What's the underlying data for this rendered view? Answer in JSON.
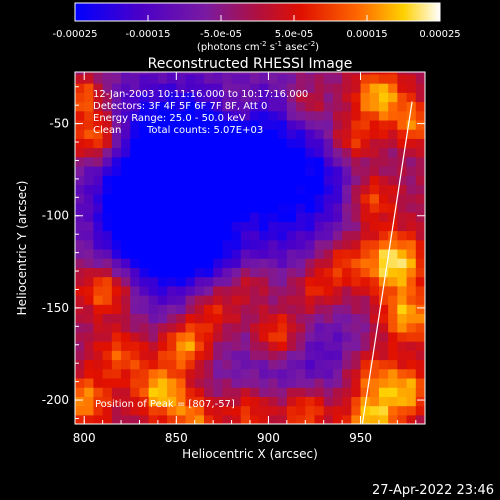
{
  "chart_data": {
    "type": "heatmap",
    "title": "Reconstructed RHESSI Image",
    "xlabel": "Heliocentric X (arcsec)",
    "ylabel": "Heliocentric Y (arcsec)",
    "xlim": [
      795,
      985
    ],
    "ylim": [
      -213,
      -22
    ],
    "x_ticks": [
      "800",
      "850",
      "900",
      "950"
    ],
    "y_ticks": [
      "-50",
      "-100",
      "-150",
      "-200"
    ],
    "colorbar": {
      "range": [
        -0.00025,
        0.00025
      ],
      "tick_labels": [
        "-0.00025",
        "-0.00015",
        "-5.0e-05",
        "5.0e-05",
        "0.00015",
        "0.00025"
      ],
      "label_main": "(photons cm",
      "label_sup1": "-2",
      "label_mid1": " s",
      "label_sup2": "-1",
      "label_mid2": " asec",
      "label_sup3": "-2",
      "label_end": ")",
      "colors": [
        "#0000ff",
        "#4b00c8",
        "#7a1aa0",
        "#b01040",
        "#e01000",
        "#ff6a00",
        "#ffd000",
        "#ffffff"
      ]
    },
    "annotations": {
      "time_range": "12-Jan-2003 10:11:16.000 to 10:17:16.000",
      "detectors": "Detectors: 3F 4F 5F 6F 7F 8F, Att 0",
      "energy": "Energy Range: 25.0 - 50.0 keV",
      "method": "Clean",
      "counts": "Total counts: 5.07E+03",
      "peak": "Position of Peak = [807,-57]"
    },
    "limb_line": {
      "x": [
        951,
        978
      ],
      "y": [
        -213,
        -38
      ]
    },
    "blobs": [
      {
        "x": 840,
        "y": -60,
        "v": -0.0002,
        "r": 28
      },
      {
        "x": 870,
        "y": -85,
        "v": -0.00022,
        "r": 30
      },
      {
        "x": 850,
        "y": -120,
        "v": -0.00018,
        "r": 25
      },
      {
        "x": 900,
        "y": -55,
        "v": -0.00012,
        "r": 22
      },
      {
        "x": 830,
        "y": -100,
        "v": -0.00015,
        "r": 20
      },
      {
        "x": 920,
        "y": -100,
        "v": -0.0001,
        "r": 22
      },
      {
        "x": 935,
        "y": -75,
        "v": -0.00012,
        "r": 18
      },
      {
        "x": 900,
        "y": -185,
        "v": -0.0001,
        "r": 22
      },
      {
        "x": 935,
        "y": -175,
        "v": -9e-05,
        "r": 18
      },
      {
        "x": 807,
        "y": -57,
        "v": 0.00025,
        "r": 10
      },
      {
        "x": 800,
        "y": -35,
        "v": 0.00018,
        "r": 8
      },
      {
        "x": 812,
        "y": -140,
        "v": 0.0002,
        "r": 10
      },
      {
        "x": 800,
        "y": -200,
        "v": 0.00018,
        "r": 10
      },
      {
        "x": 820,
        "y": -175,
        "v": 0.00014,
        "r": 10
      },
      {
        "x": 842,
        "y": -195,
        "v": 0.00022,
        "r": 10
      },
      {
        "x": 855,
        "y": -170,
        "v": 0.00021,
        "r": 9
      },
      {
        "x": 870,
        "y": -150,
        "v": 0.00017,
        "r": 11
      },
      {
        "x": 890,
        "y": -135,
        "v": 0.00012,
        "r": 9
      },
      {
        "x": 905,
        "y": -165,
        "v": 0.0002,
        "r": 10
      },
      {
        "x": 890,
        "y": -205,
        "v": 0.00016,
        "r": 10
      },
      {
        "x": 920,
        "y": -205,
        "v": 0.00018,
        "r": 10
      },
      {
        "x": 955,
        "y": -210,
        "v": 0.00022,
        "r": 10
      },
      {
        "x": 955,
        "y": -185,
        "v": 0.00016,
        "r": 10
      },
      {
        "x": 975,
        "y": -195,
        "v": 0.00019,
        "r": 10
      },
      {
        "x": 968,
        "y": -125,
        "v": 0.00025,
        "r": 12
      },
      {
        "x": 975,
        "y": -155,
        "v": 0.0002,
        "r": 10
      },
      {
        "x": 955,
        "y": -90,
        "v": 0.00018,
        "r": 10
      },
      {
        "x": 945,
        "y": -60,
        "v": 0.00019,
        "r": 10
      },
      {
        "x": 960,
        "y": -35,
        "v": 0.00022,
        "r": 10
      },
      {
        "x": 980,
        "y": -50,
        "v": 0.00016,
        "r": 9
      },
      {
        "x": 920,
        "y": -40,
        "v": 0.00012,
        "r": 8
      },
      {
        "x": 882,
        "y": -40,
        "v": 0.0001,
        "r": 8
      },
      {
        "x": 940,
        "y": -125,
        "v": 0.00013,
        "r": 10
      },
      {
        "x": 925,
        "y": -140,
        "v": 0.00012,
        "r": 9
      },
      {
        "x": 885,
        "y": -105,
        "v": 8e-05,
        "r": 8
      },
      {
        "x": 860,
        "y": -210,
        "v": 0.00016,
        "r": 9
      }
    ]
  },
  "footer": {
    "timestamp": "27-Apr-2022 23:46"
  }
}
